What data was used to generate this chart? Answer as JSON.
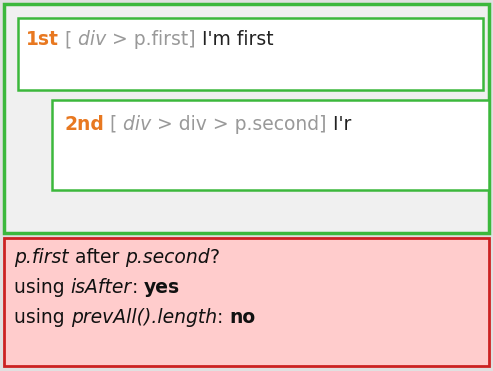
{
  "bg_color": "#e0e0e0",
  "outer_box": {
    "color": "#3cb83c",
    "bg": "#f0f0f0",
    "linewidth": 2.5
  },
  "inner_box1": {
    "color": "#3cb83c",
    "bg": "#ffffff",
    "linewidth": 1.8
  },
  "inner_box2": {
    "color": "#3cb83c",
    "bg": "#ffffff",
    "linewidth": 1.8
  },
  "bottom_box": {
    "color": "#cc2222",
    "bg": "#ffcccc",
    "linewidth": 2.0
  },
  "line1_parts": [
    {
      "text": "1st",
      "color": "#e87820",
      "style": "normal",
      "weight": "bold"
    },
    {
      "text": " [",
      "color": "#999999",
      "style": "normal",
      "weight": "normal"
    },
    {
      "text": " div",
      "color": "#999999",
      "style": "italic",
      "weight": "normal"
    },
    {
      "text": " > p.first]",
      "color": "#999999",
      "style": "normal",
      "weight": "normal"
    },
    {
      "text": " I'm first",
      "color": "#222222",
      "style": "normal",
      "weight": "normal"
    }
  ],
  "line2_parts": [
    {
      "text": "2nd",
      "color": "#e87820",
      "style": "normal",
      "weight": "bold"
    },
    {
      "text": " [",
      "color": "#999999",
      "style": "normal",
      "weight": "normal"
    },
    {
      "text": " div",
      "color": "#999999",
      "style": "italic",
      "weight": "normal"
    },
    {
      "text": " > div > p.second]",
      "color": "#999999",
      "style": "normal",
      "weight": "normal"
    },
    {
      "text": " I'r",
      "color": "#222222",
      "style": "normal",
      "weight": "normal"
    }
  ],
  "bottom_lines": [
    [
      {
        "text": "p.first",
        "color": "#111111",
        "style": "italic",
        "weight": "normal"
      },
      {
        "text": " after ",
        "color": "#111111",
        "style": "normal",
        "weight": "normal"
      },
      {
        "text": "p.second",
        "color": "#111111",
        "style": "italic",
        "weight": "normal"
      },
      {
        "text": "?",
        "color": "#111111",
        "style": "normal",
        "weight": "normal"
      }
    ],
    [
      {
        "text": "using ",
        "color": "#111111",
        "style": "normal",
        "weight": "normal"
      },
      {
        "text": "isAfter",
        "color": "#111111",
        "style": "italic",
        "weight": "normal"
      },
      {
        "text": ": ",
        "color": "#111111",
        "style": "normal",
        "weight": "normal"
      },
      {
        "text": "yes",
        "color": "#111111",
        "style": "normal",
        "weight": "bold"
      }
    ],
    [
      {
        "text": "using ",
        "color": "#111111",
        "style": "normal",
        "weight": "normal"
      },
      {
        "text": "prevAll().length",
        "color": "#111111",
        "style": "italic",
        "weight": "normal"
      },
      {
        "text": ": ",
        "color": "#111111",
        "style": "normal",
        "weight": "normal"
      },
      {
        "text": "no",
        "color": "#111111",
        "style": "normal",
        "weight": "bold"
      }
    ]
  ],
  "font_size_main": 13.5,
  "font_size_bottom": 13.5,
  "figw": 4.93,
  "figh": 3.71,
  "dpi": 100
}
